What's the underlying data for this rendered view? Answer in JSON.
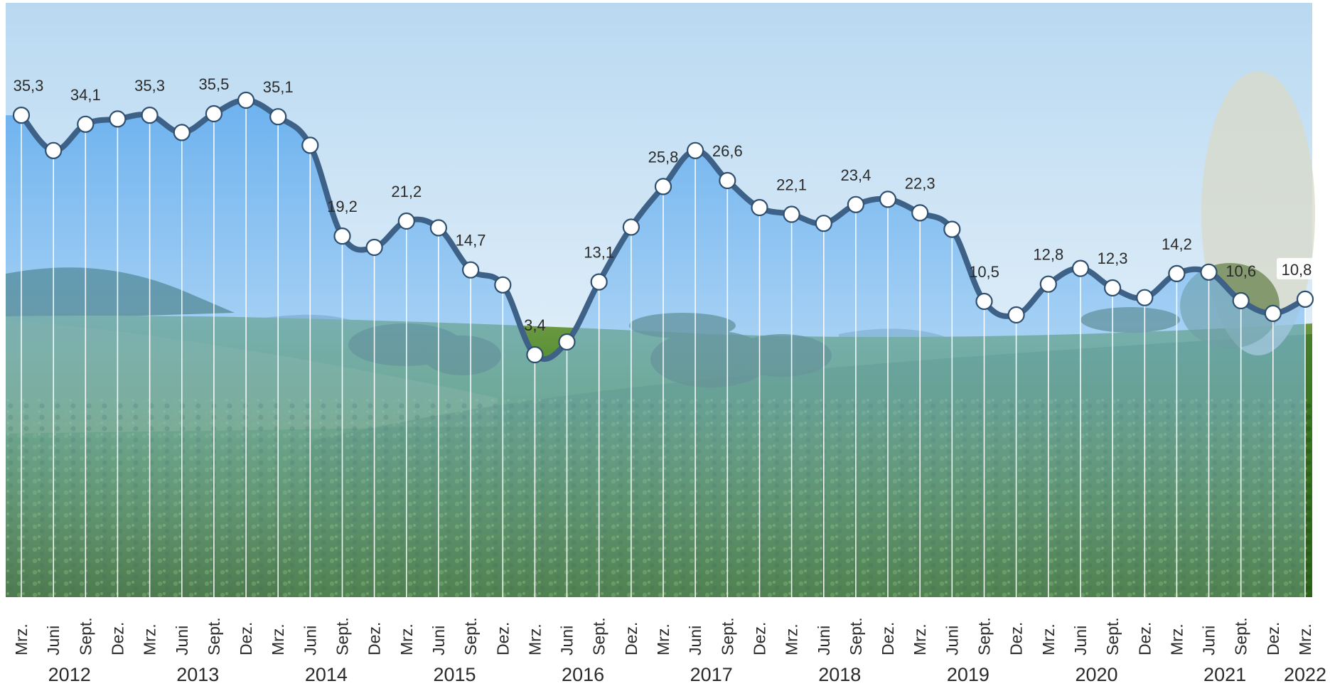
{
  "chart_data": {
    "type": "area",
    "title": "",
    "xlabel": "",
    "ylabel": "",
    "ylim": [
      0,
      40
    ],
    "grid": "vertical",
    "legend": "none",
    "colors": {
      "line": "#3e6287",
      "area_top": "#5aa8ee",
      "marker_fill": "#ffffff",
      "marker_stroke": "#2f4f6f",
      "sky": "#cfe6f7",
      "field": "#2f6a1e"
    },
    "categories": [
      "Mrz.",
      "Juni",
      "Sept.",
      "Dez.",
      "Mrz.",
      "Juni",
      "Sept.",
      "Dez.",
      "Mrz.",
      "Juni",
      "Sept.",
      "Dez.",
      "Mrz.",
      "Juni",
      "Sept.",
      "Dez.",
      "Mrz.",
      "Juni",
      "Sept.",
      "Dez.",
      "Mrz.",
      "Juni",
      "Sept.",
      "Dez.",
      "Mrz.",
      "Juni",
      "Sept.",
      "Dez.",
      "Mrz.",
      "Juni",
      "Sept.",
      "Dez.",
      "Mrz.",
      "Juni",
      "Sept.",
      "Dez.",
      "Mrz.",
      "Juni",
      "Sept.",
      "Dez.",
      "Mrz."
    ],
    "values": [
      35.3,
      30.6,
      34.1,
      34.8,
      35.3,
      33.0,
      35.5,
      37.3,
      35.1,
      31.3,
      19.2,
      17.7,
      21.2,
      20.3,
      14.7,
      12.7,
      3.4,
      5.1,
      13.1,
      20.4,
      25.8,
      30.6,
      26.6,
      23.0,
      22.1,
      20.9,
      23.4,
      24.1,
      22.3,
      20.1,
      10.5,
      8.7,
      12.8,
      14.9,
      12.3,
      11.0,
      14.2,
      14.4,
      10.6,
      8.9,
      10.8
    ],
    "value_labels": [
      "35,3",
      "",
      "34,1",
      "",
      "35,3",
      "",
      "35,5",
      "",
      "35,1",
      "",
      "19,2",
      "",
      "21,2",
      "",
      "14,7",
      "",
      "3,4",
      "",
      "13,1",
      "",
      "25,8",
      "",
      "26,6",
      "",
      "22,1",
      "",
      "23,4",
      "",
      "22,3",
      "",
      "10,5",
      "",
      "12,8",
      "",
      "12,3",
      "",
      "14,2",
      "",
      "10,6",
      "",
      "10,8"
    ],
    "years": [
      {
        "label": "2012",
        "start": 0,
        "end": 3
      },
      {
        "label": "2013",
        "start": 4,
        "end": 7
      },
      {
        "label": "2014",
        "start": 8,
        "end": 11
      },
      {
        "label": "2015",
        "start": 12,
        "end": 15
      },
      {
        "label": "2016",
        "start": 16,
        "end": 19
      },
      {
        "label": "2017",
        "start": 20,
        "end": 23
      },
      {
        "label": "2018",
        "start": 24,
        "end": 27
      },
      {
        "label": "2019",
        "start": 28,
        "end": 31
      },
      {
        "label": "2020",
        "start": 32,
        "end": 35
      },
      {
        "label": "2021",
        "start": 36,
        "end": 39
      },
      {
        "label": "2022",
        "start": 40,
        "end": 40
      }
    ]
  }
}
